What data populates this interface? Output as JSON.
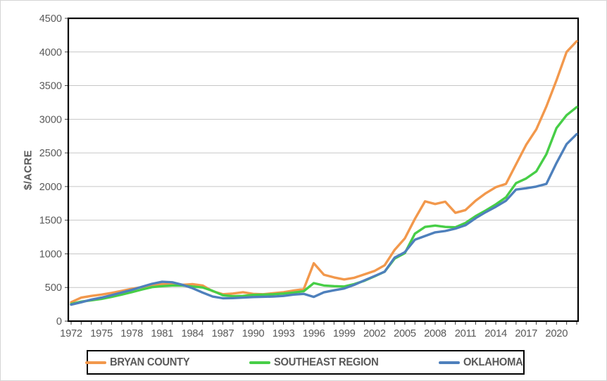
{
  "figure": {
    "background": "#ffffff",
    "outer_border_color": "#d5d5d5",
    "plot_border_color": "#000000",
    "gridline_color": "#c6c6c6",
    "axis_text_color": "#595959"
  },
  "y_axis": {
    "title": "$/ACRE",
    "min": 0,
    "max": 4500,
    "step": 500,
    "tick_labels": [
      "0",
      "500",
      "1000",
      "1500",
      "2000",
      "2500",
      "3000",
      "3500",
      "4000",
      "4500"
    ]
  },
  "x_axis": {
    "tick_labels": [
      "1972",
      "1975",
      "1978",
      "1981",
      "1984",
      "1987",
      "1990",
      "1993",
      "1996",
      "1999",
      "2002",
      "2005",
      "2008",
      "2011",
      "2014",
      "2017",
      "2020"
    ],
    "label_interval": 3
  },
  "legend": {
    "items": [
      {
        "label": "BRYAN COUNTY",
        "color": "#f2984c"
      },
      {
        "label": "SOUTHEAST REGION",
        "color": "#47ce47"
      },
      {
        "label": "OKLAHOMA",
        "color": "#4e80bc"
      }
    ]
  },
  "chart_data": {
    "type": "line",
    "title": "",
    "xlabel": "",
    "ylabel": "$/ACRE",
    "ylim": [
      0,
      4500
    ],
    "grid": "horizontal",
    "legend_position": "bottom",
    "x": [
      1972,
      1973,
      1974,
      1975,
      1976,
      1977,
      1978,
      1979,
      1980,
      1981,
      1982,
      1983,
      1984,
      1985,
      1986,
      1987,
      1988,
      1989,
      1990,
      1991,
      1992,
      1993,
      1994,
      1995,
      1996,
      1997,
      1998,
      1999,
      2000,
      2001,
      2002,
      2003,
      2004,
      2005,
      2006,
      2007,
      2008,
      2009,
      2010,
      2011,
      2012,
      2013,
      2014,
      2015,
      2016,
      2017,
      2018,
      2019,
      2020,
      2021,
      2022
    ],
    "series": [
      {
        "name": "BRYAN COUNTY",
        "color": "#f2984c",
        "values": [
          280,
          350,
          375,
          395,
          420,
          450,
          480,
          505,
          530,
          550,
          545,
          540,
          550,
          530,
          445,
          400,
          410,
          430,
          405,
          400,
          415,
          430,
          455,
          475,
          860,
          690,
          650,
          620,
          645,
          695,
          745,
          830,
          1060,
          1230,
          1520,
          1780,
          1740,
          1775,
          1610,
          1650,
          1790,
          1900,
          1990,
          2040,
          2330,
          2620,
          2850,
          3190,
          3580,
          4000,
          4160
        ]
      },
      {
        "name": "SOUTHEAST REGION",
        "color": "#47ce47",
        "values": [
          255,
          290,
          310,
          330,
          360,
          395,
          430,
          470,
          505,
          520,
          530,
          530,
          515,
          500,
          450,
          385,
          370,
          375,
          390,
          395,
          400,
          410,
          425,
          445,
          565,
          530,
          520,
          515,
          550,
          600,
          665,
          735,
          930,
          1010,
          1300,
          1400,
          1420,
          1400,
          1395,
          1460,
          1560,
          1645,
          1735,
          1840,
          2050,
          2120,
          2225,
          2480,
          2870,
          3060,
          3180
        ]
      },
      {
        "name": "OKLAHOMA",
        "color": "#4e80bc",
        "values": [
          245,
          280,
          320,
          350,
          385,
          425,
          465,
          510,
          555,
          585,
          578,
          540,
          490,
          425,
          365,
          340,
          342,
          350,
          358,
          362,
          365,
          375,
          395,
          405,
          360,
          428,
          458,
          485,
          540,
          605,
          670,
          735,
          945,
          1025,
          1210,
          1265,
          1320,
          1340,
          1375,
          1425,
          1530,
          1620,
          1700,
          1790,
          1955,
          1975,
          2000,
          2040,
          2350,
          2630,
          2780
        ]
      }
    ]
  }
}
